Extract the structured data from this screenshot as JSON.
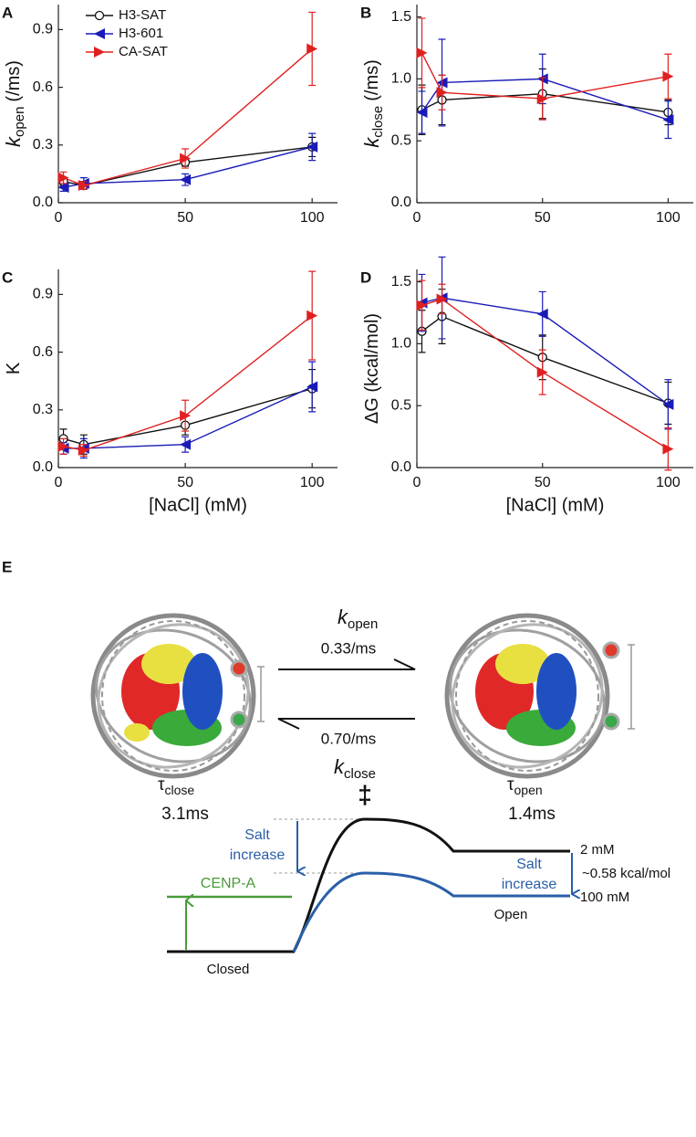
{
  "chart_data": [
    {
      "type": "line",
      "panel": "A",
      "ylabel": "k",
      "ylabel_sub": "open",
      "ylabel_unit": "(/ms)",
      "x": [
        2,
        10,
        50,
        100
      ],
      "xlim": [
        0,
        110
      ],
      "xticks": [
        0,
        50,
        100
      ],
      "ylim": [
        0,
        1.03
      ],
      "yticks": [
        {
          "value": 0,
          "label": "0.0"
        },
        0.3,
        0.6,
        0.9
      ],
      "legend": "upper left",
      "series": [
        {
          "name": "H3-SAT",
          "color": "#111111",
          "marker": "circle",
          "values": [
            0.11,
            0.09,
            0.21,
            0.29
          ],
          "errors": [
            0.02,
            0.02,
            0.02,
            0.05
          ]
        },
        {
          "name": "H3-601",
          "color": "#1a1ab8",
          "marker": "triangle-left",
          "values": [
            0.08,
            0.1,
            0.12,
            0.29
          ],
          "errors": [
            0.02,
            0.03,
            0.03,
            0.07
          ]
        },
        {
          "name": "CA-SAT",
          "color": "#e02020",
          "marker": "triangle-right",
          "values": [
            0.13,
            0.09,
            0.23,
            0.8
          ],
          "errors": [
            0.03,
            0.02,
            0.05,
            0.19
          ]
        }
      ]
    },
    {
      "type": "line",
      "panel": "B",
      "ylabel": "k",
      "ylabel_sub": "close",
      "ylabel_unit": "(/ms)",
      "x": [
        2,
        10,
        50,
        100
      ],
      "xlim": [
        0,
        110
      ],
      "xticks": [
        0,
        50,
        100
      ],
      "ylim": [
        0,
        1.6
      ],
      "yticks": [
        {
          "value": 0,
          "label": "0.0"
        },
        0.5,
        {
          "value": 1,
          "label": "1.0"
        },
        1.5
      ],
      "series": [
        {
          "color": "#111111",
          "marker": "circle",
          "values": [
            0.75,
            0.83,
            0.88,
            0.73
          ],
          "errors": [
            0.2,
            0.2,
            0.2,
            0.1
          ]
        },
        {
          "color": "#1a1ab8",
          "marker": "triangle-left",
          "values": [
            0.73,
            0.97,
            1.0,
            0.67
          ],
          "errors": [
            0.17,
            0.35,
            0.2,
            0.15
          ]
        },
        {
          "color": "#e02020",
          "marker": "triangle-right",
          "values": [
            1.21,
            0.89,
            0.84,
            1.02
          ],
          "errors": [
            0.28,
            0.14,
            0.17,
            0.18
          ]
        }
      ]
    },
    {
      "type": "line",
      "panel": "C",
      "ylabel": "K",
      "xlabel": "[NaCl] (mM)",
      "x": [
        2,
        10,
        50,
        100
      ],
      "xlim": [
        0,
        110
      ],
      "xticks": [
        0,
        50,
        100
      ],
      "ylim": [
        0,
        1.03
      ],
      "yticks": [
        {
          "value": 0,
          "label": "0.0"
        },
        0.3,
        0.6,
        0.9
      ],
      "series": [
        {
          "color": "#111111",
          "marker": "circle",
          "values": [
            0.15,
            0.12,
            0.22,
            0.41
          ],
          "errors": [
            0.05,
            0.05,
            0.05,
            0.1
          ]
        },
        {
          "color": "#1a1ab8",
          "marker": "triangle-left",
          "values": [
            0.1,
            0.1,
            0.12,
            0.42
          ],
          "errors": [
            0.03,
            0.05,
            0.04,
            0.13
          ]
        },
        {
          "color": "#e02020",
          "marker": "triangle-right",
          "values": [
            0.11,
            0.09,
            0.27,
            0.79
          ],
          "errors": [
            0.04,
            0.03,
            0.08,
            0.23
          ]
        }
      ]
    },
    {
      "type": "line",
      "panel": "D",
      "ylabel": "ΔG (kcal/mol)",
      "xlabel": "[NaCl] (mM)",
      "x": [
        2,
        10,
        50,
        100
      ],
      "xlim": [
        0,
        110
      ],
      "xticks": [
        0,
        50,
        100
      ],
      "ylim": [
        0,
        1.6
      ],
      "yticks": [
        {
          "value": 0,
          "label": "0.0"
        },
        0.5,
        {
          "value": 1,
          "label": "1.0"
        },
        1.5
      ],
      "series": [
        {
          "color": "#111111",
          "marker": "circle",
          "values": [
            1.1,
            1.22,
            0.89,
            0.52
          ],
          "errors": [
            0.17,
            0.22,
            0.18,
            0.17
          ]
        },
        {
          "color": "#1a1ab8",
          "marker": "triangle-left",
          "values": [
            1.33,
            1.37,
            1.24,
            0.51
          ],
          "errors": [
            0.23,
            0.33,
            0.18,
            0.2
          ]
        },
        {
          "color": "#e02020",
          "marker": "triangle-right",
          "values": [
            1.31,
            1.36,
            0.77,
            0.15
          ],
          "errors": [
            0.2,
            0.12,
            0.18,
            0.17
          ]
        }
      ]
    }
  ],
  "diagram": {
    "panel": "E",
    "k_open": {
      "symbol": "k",
      "sub": "open"
    },
    "rate_open": "0.33/ms",
    "rate_close": "0.70/ms",
    "k_close": {
      "symbol": "k",
      "sub": "close"
    },
    "tau_close": {
      "symbol": "τ",
      "sub": "close",
      "value": "3.1ms"
    },
    "tau_open": {
      "symbol": "τ",
      "sub": "open",
      "value": "1.4ms"
    },
    "transition": "‡",
    "salt_barrier": [
      "Salt",
      "increase"
    ],
    "salt_open": [
      "Salt",
      "increase"
    ],
    "conc_high_state": "2 mM",
    "conc_low_state": "100 mM",
    "energy_diff": "~0.58 kcal/mol",
    "cenp_a": "CENP-A",
    "closed": "Closed",
    "open": "Open"
  }
}
